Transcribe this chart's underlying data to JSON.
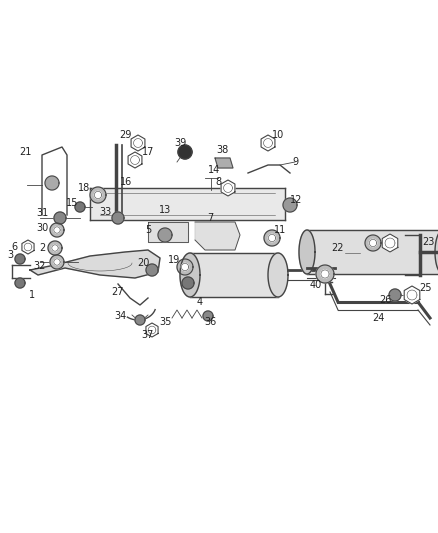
{
  "bg_color": "#ffffff",
  "line_color": "#444444",
  "label_color": "#222222",
  "lw_main": 1.0,
  "lw_thin": 0.6,
  "label_fontsize": 7.0
}
